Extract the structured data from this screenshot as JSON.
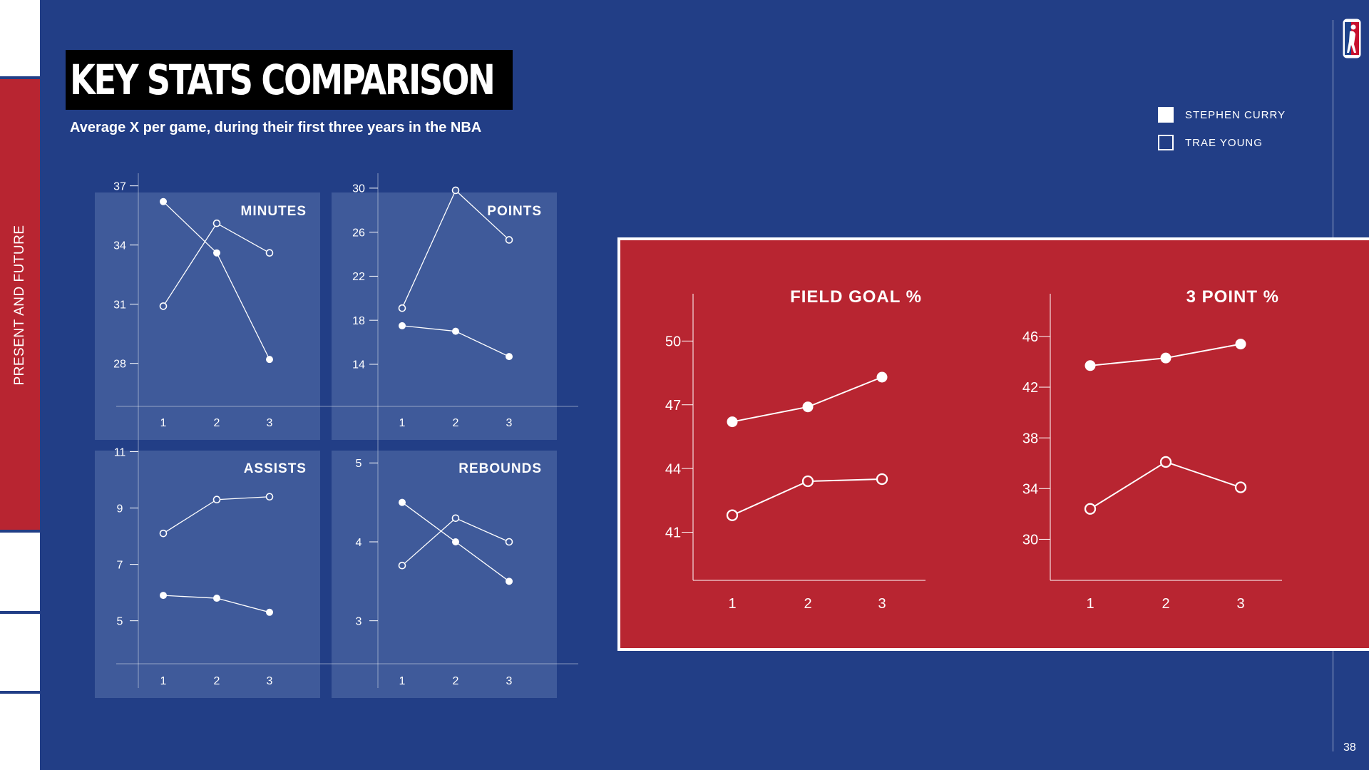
{
  "sidebar": {
    "section_label": "PRESENT AND FUTURE"
  },
  "header": {
    "title": "KEY STATS COMPARISON",
    "subtitle_before": "Average X per game, during their first ",
    "subtitle_emphasis": "three",
    "subtitle_after": " years in the NBA"
  },
  "legend": [
    {
      "label": "STEPHEN CURRY",
      "style": "filled"
    },
    {
      "label": "TRAE YOUNG",
      "style": "hollow"
    }
  ],
  "page_number": "38",
  "logo": {
    "icon": "nba-logo-icon"
  },
  "colors": {
    "background": "#223E86",
    "panel": "#3F5A9A",
    "accent_red": "#B82531",
    "series": "#FFFFFF"
  },
  "chart_data": [
    {
      "type": "line",
      "title": "MINUTES",
      "categories": [
        "1",
        "2",
        "3"
      ],
      "yticks": [
        37,
        34,
        31,
        28
      ],
      "ylim": [
        26,
        38
      ],
      "series": [
        {
          "name": "STEPHEN CURRY",
          "marker": "filled",
          "values": [
            36.2,
            33.6,
            28.2
          ]
        },
        {
          "name": "TRAE YOUNG",
          "marker": "hollow",
          "values": [
            30.9,
            35.1,
            33.6
          ]
        }
      ]
    },
    {
      "type": "line",
      "title": "POINTS",
      "categories": [
        "1",
        "2",
        "3"
      ],
      "yticks": [
        30,
        26,
        22,
        18,
        14
      ],
      "ylim": [
        10.5,
        32
      ],
      "series": [
        {
          "name": "STEPHEN CURRY",
          "marker": "filled",
          "values": [
            17.5,
            17.0,
            14.7
          ]
        },
        {
          "name": "TRAE YOUNG",
          "marker": "hollow",
          "values": [
            19.1,
            29.8,
            25.3
          ]
        }
      ]
    },
    {
      "type": "line",
      "title": "ASSISTS",
      "categories": [
        "1",
        "2",
        "3"
      ],
      "yticks": [
        11,
        9,
        7,
        5
      ],
      "ylim": [
        3.6,
        12
      ],
      "series": [
        {
          "name": "STEPHEN CURRY",
          "marker": "filled",
          "values": [
            5.9,
            5.8,
            5.3
          ]
        },
        {
          "name": "TRAE YOUNG",
          "marker": "hollow",
          "values": [
            8.1,
            9.3,
            9.4
          ]
        }
      ]
    },
    {
      "type": "line",
      "title": "REBOUNDS",
      "categories": [
        "1",
        "2",
        "3"
      ],
      "yticks": [
        5,
        4,
        3
      ],
      "ylim": [
        2.5,
        5.5
      ],
      "series": [
        {
          "name": "STEPHEN CURRY",
          "marker": "filled",
          "values": [
            4.5,
            4.0,
            3.5
          ]
        },
        {
          "name": "TRAE YOUNG",
          "marker": "hollow",
          "values": [
            3.7,
            4.3,
            4.0
          ]
        }
      ]
    },
    {
      "type": "line",
      "title": "FIELD GOAL %",
      "categories": [
        "1",
        "2",
        "3"
      ],
      "yticks": [
        50,
        47,
        44,
        41
      ],
      "ylim": [
        38.4,
        53.2
      ],
      "series": [
        {
          "name": "STEPHEN CURRY",
          "marker": "filled",
          "values": [
            46.2,
            46.9,
            48.3
          ]
        },
        {
          "name": "TRAE YOUNG",
          "marker": "hollow",
          "values": [
            41.8,
            43.4,
            43.5
          ]
        }
      ]
    },
    {
      "type": "line",
      "title": "3 POINT %",
      "categories": [
        "1",
        "2",
        "3"
      ],
      "yticks": [
        46,
        42,
        38,
        34,
        30
      ],
      "ylim": [
        26.2,
        51
      ],
      "series": [
        {
          "name": "STEPHEN CURRY",
          "marker": "filled",
          "values": [
            43.7,
            44.3,
            45.4
          ]
        },
        {
          "name": "TRAE YOUNG",
          "marker": "hollow",
          "values": [
            32.4,
            36.1,
            34.1
          ]
        }
      ]
    }
  ]
}
